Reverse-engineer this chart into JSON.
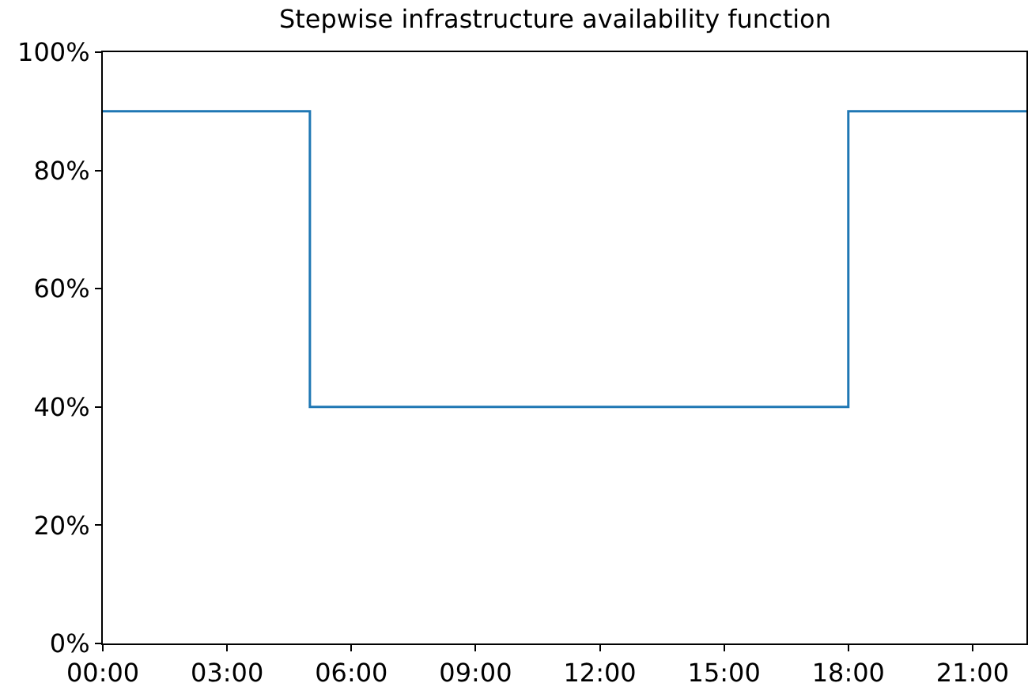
{
  "chart_data": {
    "type": "step",
    "title": "Stepwise infrastructure availability function",
    "x": [
      0,
      5,
      18,
      22.3
    ],
    "values": [
      90,
      40,
      90,
      90
    ],
    "color": "#1f77b4",
    "xlim": [
      0,
      22.3
    ],
    "xticks": [
      {
        "value": 0,
        "label": "00:00"
      },
      {
        "value": 3,
        "label": "03:00"
      },
      {
        "value": 6,
        "label": "06:00"
      },
      {
        "value": 9,
        "label": "09:00"
      },
      {
        "value": 12,
        "label": "12:00"
      },
      {
        "value": 15,
        "label": "15:00"
      },
      {
        "value": 18,
        "label": "18:00"
      },
      {
        "value": 21,
        "label": "21:00"
      }
    ],
    "ylim": [
      0,
      100
    ],
    "yticks": [
      {
        "value": 0,
        "label": "0%"
      },
      {
        "value": 20,
        "label": "20%"
      },
      {
        "value": 40,
        "label": "40%"
      },
      {
        "value": 60,
        "label": "60%"
      },
      {
        "value": 80,
        "label": "80%"
      },
      {
        "value": 100,
        "label": "100%"
      }
    ],
    "grid": false,
    "legend": false,
    "marker": "none",
    "line_style": "solid"
  }
}
